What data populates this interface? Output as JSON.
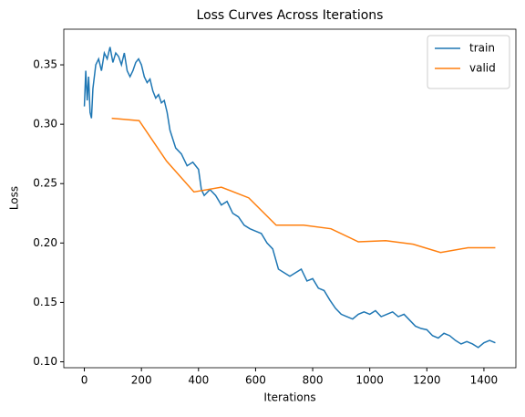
{
  "chart_data": {
    "type": "line",
    "title": "Loss Curves Across Iterations",
    "xlabel": "Iterations",
    "ylabel": "Loss",
    "xlim": [
      -72,
      1512
    ],
    "ylim": [
      0.095,
      0.38
    ],
    "xticks": [
      0,
      200,
      400,
      600,
      800,
      1000,
      1200,
      1400
    ],
    "yticks": [
      {
        "value": 0.1,
        "label": "0.10"
      },
      0.15,
      {
        "value": 0.2,
        "label": "0.20"
      },
      0.25,
      {
        "value": 0.3,
        "label": "0.30"
      },
      0.35
    ],
    "legend": "upper right",
    "grid": false,
    "series": [
      {
        "name": "train",
        "color": "#1f77b4",
        "x": [
          0,
          5,
          10,
          15,
          20,
          25,
          30,
          40,
          50,
          60,
          70,
          80,
          90,
          100,
          110,
          120,
          130,
          140,
          150,
          160,
          170,
          180,
          190,
          200,
          210,
          220,
          230,
          240,
          250,
          260,
          270,
          280,
          290,
          300,
          320,
          340,
          360,
          380,
          400,
          410,
          420,
          440,
          460,
          480,
          500,
          520,
          540,
          560,
          580,
          600,
          620,
          640,
          660,
          680,
          700,
          720,
          740,
          760,
          780,
          800,
          820,
          840,
          860,
          880,
          900,
          920,
          940,
          960,
          980,
          1000,
          1020,
          1040,
          1060,
          1080,
          1100,
          1120,
          1140,
          1160,
          1180,
          1200,
          1220,
          1240,
          1260,
          1280,
          1300,
          1320,
          1340,
          1360,
          1380,
          1400,
          1420,
          1440
        ],
        "values": [
          0.315,
          0.345,
          0.32,
          0.34,
          0.31,
          0.305,
          0.33,
          0.35,
          0.355,
          0.345,
          0.36,
          0.355,
          0.365,
          0.352,
          0.36,
          0.357,
          0.35,
          0.36,
          0.345,
          0.34,
          0.345,
          0.352,
          0.355,
          0.35,
          0.34,
          0.335,
          0.338,
          0.328,
          0.322,
          0.325,
          0.318,
          0.32,
          0.31,
          0.295,
          0.28,
          0.275,
          0.265,
          0.268,
          0.262,
          0.245,
          0.24,
          0.245,
          0.24,
          0.232,
          0.235,
          0.225,
          0.222,
          0.215,
          0.212,
          0.21,
          0.208,
          0.2,
          0.195,
          0.178,
          0.175,
          0.172,
          0.175,
          0.178,
          0.168,
          0.17,
          0.162,
          0.16,
          0.152,
          0.145,
          0.14,
          0.138,
          0.136,
          0.14,
          0.142,
          0.14,
          0.143,
          0.138,
          0.14,
          0.142,
          0.138,
          0.14,
          0.135,
          0.13,
          0.128,
          0.127,
          0.122,
          0.12,
          0.124,
          0.122,
          0.118,
          0.115,
          0.117,
          0.115,
          0.112,
          0.116,
          0.118,
          0.116
        ]
      },
      {
        "name": "valid",
        "color": "#ff7f0e",
        "x": [
          96,
          192,
          288,
          384,
          480,
          576,
          672,
          768,
          864,
          960,
          1056,
          1152,
          1248,
          1344,
          1440
        ],
        "values": [
          0.305,
          0.303,
          0.269,
          0.243,
          0.247,
          0.238,
          0.215,
          0.215,
          0.212,
          0.201,
          0.202,
          0.199,
          0.192,
          0.196,
          0.196
        ]
      }
    ]
  }
}
